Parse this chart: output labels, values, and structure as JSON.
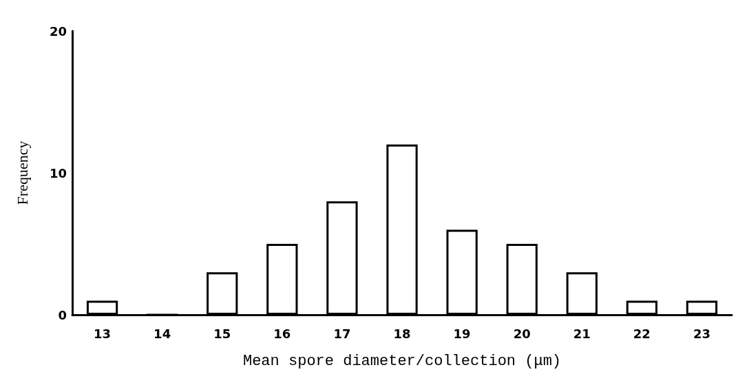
{
  "chart_data": {
    "type": "bar",
    "xlabel": "Mean spore diameter/collection (μm)",
    "ylabel": "Frequency",
    "categories": [
      "13",
      "14",
      "15",
      "16",
      "17",
      "18",
      "19",
      "20",
      "21",
      "22",
      "23"
    ],
    "values": [
      1,
      0,
      3,
      5,
      8,
      12,
      6,
      5,
      3,
      1,
      1
    ],
    "color": "#ffffff",
    "ylim": [
      0,
      20
    ],
    "yticks": [
      0,
      10,
      20
    ],
    "grid": false
  }
}
